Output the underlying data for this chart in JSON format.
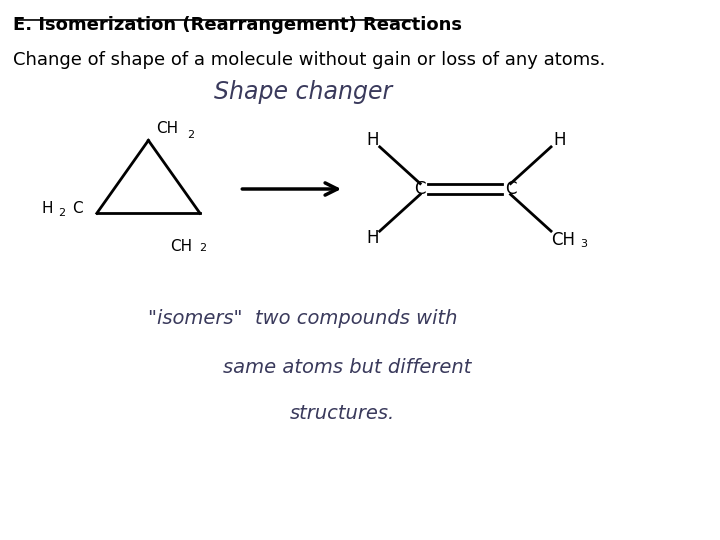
{
  "title_line1": "E. Isomerization (Rearrangement) Reactions",
  "title_line2": "Change of shape of a molecule without gain or loss of any atoms.",
  "bg_color": "#ffffff",
  "text_color": "#000000",
  "handwriting_color": "#3a3a5c",
  "title_fontsize": 13,
  "body_fontsize": 13,
  "shape_changer_text": "Shape changer",
  "isomers_line1": "\"isomers\"  two compounds with",
  "isomers_line2": "same atoms but different",
  "isomers_line3": "structures."
}
